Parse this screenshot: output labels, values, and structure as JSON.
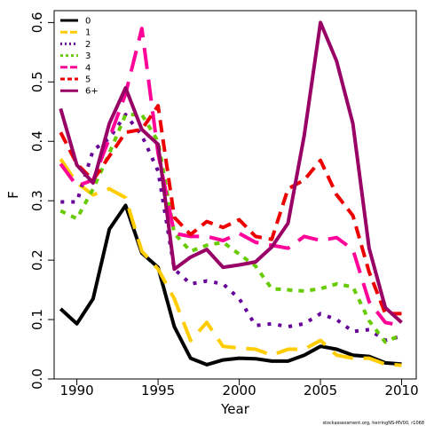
{
  "chart_data": {
    "type": "line",
    "title": "",
    "xlabel": "Year",
    "ylabel": "F",
    "xlim": [
      1988.6,
      2010.9
    ],
    "ylim": [
      0,
      0.62
    ],
    "xticks": [
      1990,
      1995,
      2000,
      2005,
      2010
    ],
    "xtick_labels": [
      "1990",
      "1995",
      "2000",
      "2005",
      "2010"
    ],
    "yticks": [
      0.0,
      0.1,
      0.2,
      0.3,
      0.4,
      0.5,
      0.6
    ],
    "ytick_labels": [
      "0.0",
      "0.1",
      "0.2",
      "0.3",
      "0.4",
      "0.5",
      "0.6"
    ],
    "grid": false,
    "legend_position": "top-left",
    "x": [
      1989,
      1990,
      1991,
      1992,
      1993,
      1994,
      1995,
      1996,
      1997,
      1998,
      1999,
      2000,
      2001,
      2002,
      2003,
      2004,
      2005,
      2006,
      2007,
      2008,
      2009,
      2010
    ],
    "series": [
      {
        "name": "0",
        "color": "#000000",
        "dash": "solid",
        "values": [
          0.118,
          0.093,
          0.135,
          0.252,
          0.292,
          0.212,
          0.188,
          0.088,
          0.035,
          0.024,
          0.032,
          0.035,
          0.034,
          0.03,
          0.03,
          0.04,
          0.055,
          0.05,
          0.04,
          0.038,
          0.027,
          0.025
        ]
      },
      {
        "name": "1",
        "color": "#ffcc00",
        "dash": "longdash",
        "values": [
          0.37,
          0.33,
          0.31,
          0.32,
          0.305,
          0.215,
          0.185,
          0.135,
          0.065,
          0.095,
          0.055,
          0.052,
          0.05,
          0.04,
          0.05,
          0.05,
          0.065,
          0.04,
          0.035,
          0.035,
          0.025,
          0.023
        ]
      },
      {
        "name": "2",
        "color": "#660099",
        "dash": "dotted",
        "values": [
          0.298,
          0.298,
          0.385,
          0.405,
          0.445,
          0.41,
          0.35,
          0.185,
          0.16,
          0.165,
          0.16,
          0.135,
          0.09,
          0.093,
          0.088,
          0.093,
          0.11,
          0.1,
          0.08,
          0.083,
          0.065,
          0.072
        ]
      },
      {
        "name": "3",
        "color": "#66cc00",
        "dash": "shortdash",
        "values": [
          0.283,
          0.27,
          0.32,
          0.38,
          0.445,
          0.445,
          0.4,
          0.245,
          0.215,
          0.225,
          0.23,
          0.21,
          0.19,
          0.152,
          0.15,
          0.148,
          0.152,
          0.16,
          0.155,
          0.098,
          0.062,
          0.075
        ]
      },
      {
        "name": "4",
        "color": "#ff0099",
        "dash": "longdash",
        "values": [
          0.362,
          0.325,
          0.335,
          0.405,
          0.48,
          0.59,
          0.38,
          0.245,
          0.24,
          0.24,
          0.233,
          0.245,
          0.23,
          0.225,
          0.22,
          0.24,
          0.233,
          0.238,
          0.218,
          0.13,
          0.095,
          0.09
        ]
      },
      {
        "name": "5",
        "color": "#ee0000",
        "dash": "dash",
        "values": [
          0.415,
          0.362,
          0.335,
          0.375,
          0.415,
          0.42,
          0.46,
          0.272,
          0.243,
          0.265,
          0.255,
          0.268,
          0.24,
          0.235,
          0.32,
          0.335,
          0.368,
          0.31,
          0.275,
          0.18,
          0.11,
          0.11
        ]
      },
      {
        "name": "6+",
        "color": "#990066",
        "dash": "solid",
        "values": [
          0.455,
          0.36,
          0.33,
          0.43,
          0.49,
          0.42,
          0.395,
          0.185,
          0.205,
          0.218,
          0.188,
          0.192,
          0.197,
          0.222,
          0.262,
          0.41,
          0.6,
          0.535,
          0.43,
          0.22,
          0.12,
          0.095
        ]
      }
    ],
    "credit": "stockassessment.org, herringNS-MV00, r1068"
  }
}
